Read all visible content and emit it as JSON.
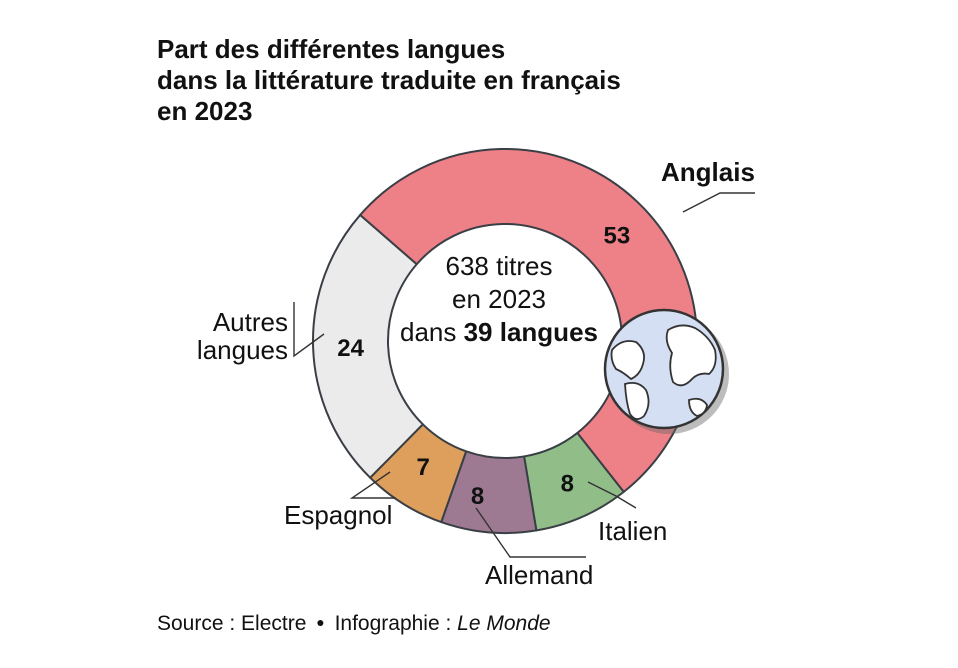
{
  "title_lines": [
    "Part des différentes langues",
    "dans la littérature traduite en français",
    "en 2023"
  ],
  "center": {
    "line1": "638 titres",
    "line2": "en 2023",
    "line3_prefix": "dans ",
    "line3_bold": "39 langues"
  },
  "source": {
    "label": "Source : Electre",
    "separator": "●",
    "credit_label": "Infographie : ",
    "credit_name": "Le Monde"
  },
  "chart_data": {
    "type": "pie",
    "unit": "%",
    "total_titles": 638,
    "total_languages": 39,
    "year": 2023,
    "slices": [
      {
        "label": "Anglais",
        "value": 53,
        "color": "#ee8188"
      },
      {
        "label": "Italien",
        "value": 8,
        "color": "#90bd88"
      },
      {
        "label": "Allemand",
        "value": 8,
        "color": "#9e7a92"
      },
      {
        "label": "Espagnol",
        "value": 7,
        "color": "#de9e5c"
      },
      {
        "label": "Autres\nlangues",
        "value": 24,
        "color": "#ebebeb"
      }
    ]
  }
}
